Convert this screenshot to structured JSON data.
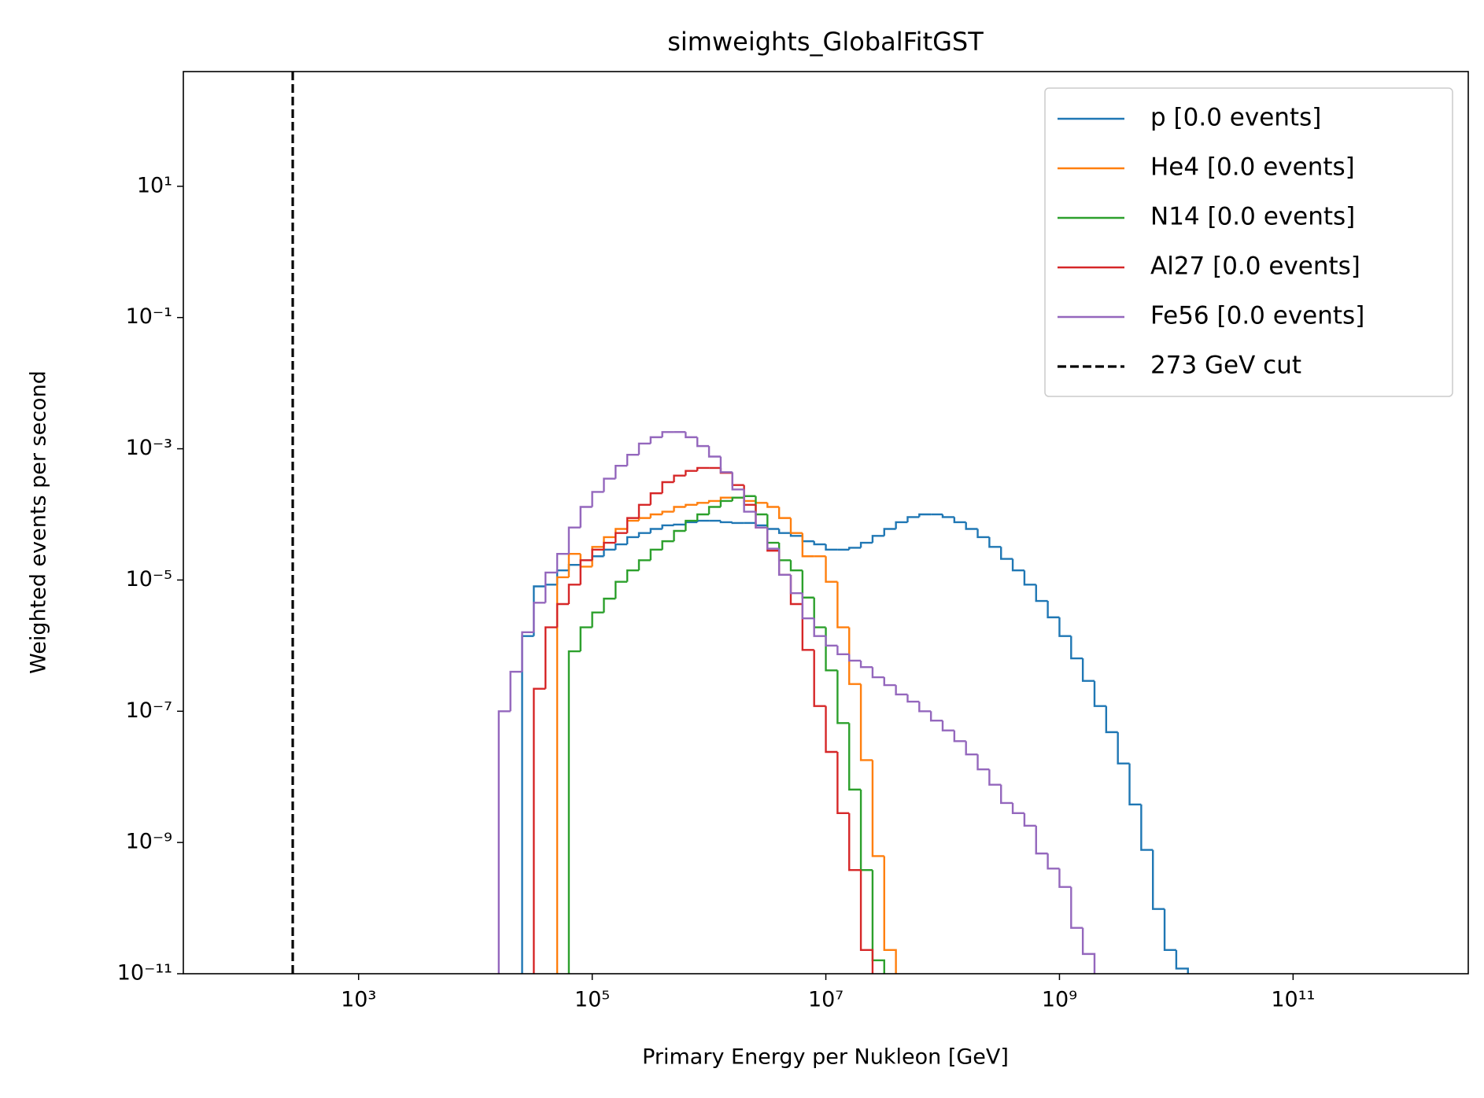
{
  "chart_data": {
    "type": "histogram",
    "title": "simweights_GlobalFitGST",
    "x_label": "Primary Energy per Nukleon [GeV]",
    "y_label": "Weighted events per second",
    "xscale": "log",
    "yscale": "log",
    "grid": false,
    "legend_loc": "upper right",
    "xlim": [
      31.6,
      3160000000000
    ],
    "ylim": [
      1e-11,
      560
    ],
    "xticks": [
      {
        "value": 1000,
        "label": "10³"
      },
      {
        "value": 100000,
        "label": "10⁵"
      },
      {
        "value": 10000000,
        "label": "10⁷"
      },
      {
        "value": 1000000000,
        "label": "10⁹"
      },
      {
        "value": 100000000000,
        "label": "10¹¹"
      }
    ],
    "yticks": [
      {
        "value": 1e-11,
        "label": "10⁻¹¹"
      },
      {
        "value": 1e-09,
        "label": "10⁻⁹"
      },
      {
        "value": 1e-07,
        "label": "10⁻⁷"
      },
      {
        "value": 1e-05,
        "label": "10⁻⁵"
      },
      {
        "value": 0.001,
        "label": "10⁻³"
      },
      {
        "value": 0.1,
        "label": "10⁻¹"
      },
      {
        "value": 10,
        "label": "10¹"
      }
    ],
    "bins": [
      15849,
      19953,
      25119,
      31623,
      39811,
      50119,
      63096,
      79433,
      100000,
      125893,
      158489,
      199526,
      251189,
      316228,
      398107,
      501187,
      630957,
      794328,
      1000000,
      1258925,
      1584893,
      1995262,
      2511886,
      3162278,
      3981072,
      5011872,
      6309573,
      7943282,
      10000000,
      12589254,
      15848932,
      19952623,
      25118864,
      31622777,
      39810717,
      50118723,
      63095734,
      79432823,
      100000000,
      125892541,
      158489319,
      199526231,
      251188643,
      316227766,
      398107171,
      501187234,
      630957344,
      794328235,
      1000000000,
      1258925412,
      1584893192,
      1995262315,
      2511886432,
      3162277660,
      3981071706,
      5011872336,
      6309573445,
      7943282347,
      10000000000,
      12589254118
    ],
    "series": [
      {
        "name": "p [0.0 events]",
        "color": "#1f77b4",
        "values": [
          null,
          null,
          1.4e-06,
          8e-06,
          8.5e-06,
          1.4e-05,
          1.7e-05,
          2e-05,
          2.3e-05,
          2.9e-05,
          3.5e-05,
          4.5e-05,
          5.2e-05,
          6e-05,
          6.8e-05,
          7e-05,
          7.6e-05,
          8e-05,
          8e-05,
          7.6e-05,
          7.4e-05,
          7.4e-05,
          6.8e-05,
          6e-05,
          5.2e-05,
          4.7e-05,
          3.9e-05,
          3.5e-05,
          2.9e-05,
          2.9e-05,
          3.1e-05,
          3.7e-05,
          4.7e-05,
          6e-05,
          7.6e-05,
          9.1e-05,
          0.0001,
          0.0001,
          9.1e-05,
          7.6e-05,
          6e-05,
          4.5e-05,
          3.2e-05,
          2.1e-05,
          1.4e-05,
          8.5e-06,
          4.8e-06,
          2.7e-06,
          1.4e-06,
          6.4e-07,
          2.9e-07,
          1.2e-07,
          4.8e-08,
          1.6e-08,
          3.8e-09,
          7.7e-10,
          9.7e-11,
          2.3e-11,
          1.2e-11
        ]
      },
      {
        "name": "He4 [0.0 events]",
        "color": "#ff7f0e",
        "values": [
          null,
          null,
          null,
          null,
          null,
          1.1e-05,
          2.5e-05,
          1.6e-05,
          3.2e-05,
          4.5e-05,
          6e-05,
          8e-05,
          8.8e-05,
          0.0001,
          0.00011,
          0.00013,
          0.00014,
          0.00015,
          0.00016,
          0.00018,
          0.00018,
          0.00016,
          0.00015,
          0.00013,
          8.8e-05,
          5.2e-05,
          2.3e-05,
          2.3e-05,
          9.4e-06,
          1.9e-06,
          2.6e-07,
          1.8e-08,
          6.2e-10,
          2.3e-11,
          null,
          null,
          null,
          null,
          null,
          null,
          null,
          null,
          null,
          null,
          null,
          null,
          null,
          null,
          null,
          null,
          null,
          null,
          null,
          null,
          null,
          null,
          null,
          null,
          null
        ]
      },
      {
        "name": "N14 [0.0 events]",
        "color": "#2ca02c",
        "values": [
          null,
          null,
          null,
          null,
          null,
          null,
          8.2e-07,
          1.9e-06,
          3.2e-06,
          5.2e-06,
          9.4e-06,
          1.4e-05,
          2e-05,
          2.9e-05,
          3.9e-05,
          5.6e-05,
          8e-05,
          0.0001,
          0.00013,
          0.00016,
          0.00018,
          0.00019,
          0.0001,
          3.7e-05,
          2e-05,
          1.4e-05,
          5.4e-06,
          1.9e-06,
          4.2e-07,
          6.6e-08,
          6.4e-09,
          3.8e-10,
          1.6e-11,
          null,
          null,
          null,
          null,
          null,
          null,
          null,
          null,
          null,
          null,
          null,
          null,
          null,
          null,
          null,
          null,
          null,
          null,
          null,
          null,
          null,
          null,
          null,
          null,
          null,
          null
        ]
      },
      {
        "name": "Al27 [0.0 events]",
        "color": "#d62728",
        "values": [
          null,
          null,
          null,
          2.2e-07,
          1.9e-06,
          4.3e-06,
          8.5e-06,
          2e-05,
          2.9e-05,
          3.7e-05,
          5.2e-05,
          8.8e-05,
          0.00014,
          0.00021,
          0.00031,
          0.00039,
          0.00046,
          0.00051,
          0.00051,
          0.00043,
          0.00028,
          0.00014,
          6.3e-05,
          2.8e-05,
          1.2e-05,
          4.3e-06,
          8.6e-07,
          1.2e-07,
          2.4e-08,
          2.8e-09,
          3.8e-10,
          2.3e-11,
          null,
          null,
          null,
          null,
          null,
          null,
          null,
          null,
          null,
          null,
          null,
          null,
          null,
          null,
          null,
          null,
          null,
          null,
          null,
          null,
          null,
          null,
          null,
          null,
          null,
          null,
          null
        ]
      },
      {
        "name": "Fe56 [0.0 events]",
        "color": "#9467bd",
        "values": [
          1e-07,
          4e-07,
          1.6e-06,
          4.5e-06,
          1.3e-05,
          2.5e-05,
          6.3e-05,
          0.00013,
          0.00022,
          0.00035,
          0.00055,
          0.00081,
          0.0012,
          0.0015,
          0.0018,
          0.0018,
          0.0015,
          0.0011,
          0.00076,
          0.00044,
          0.00024,
          0.00011,
          6.3e-05,
          3e-05,
          1.2e-05,
          6.3e-06,
          2.6e-06,
          1.4e-06,
          1e-06,
          7.4e-07,
          5.9e-07,
          4.7e-07,
          3.3e-07,
          2.5e-07,
          1.8e-07,
          1.4e-07,
          1e-07,
          7.2e-08,
          5.1e-08,
          3.5e-08,
          2.2e-08,
          1.3e-08,
          7.6e-09,
          4e-09,
          2.8e-09,
          1.8e-09,
          6.8e-10,
          4e-10,
          2.1e-10,
          5e-11,
          2e-11,
          null,
          null,
          null,
          null,
          null,
          null,
          null,
          null
        ]
      }
    ],
    "cut": {
      "name": "273 GeV cut",
      "value": 273,
      "color": "#000000"
    }
  }
}
